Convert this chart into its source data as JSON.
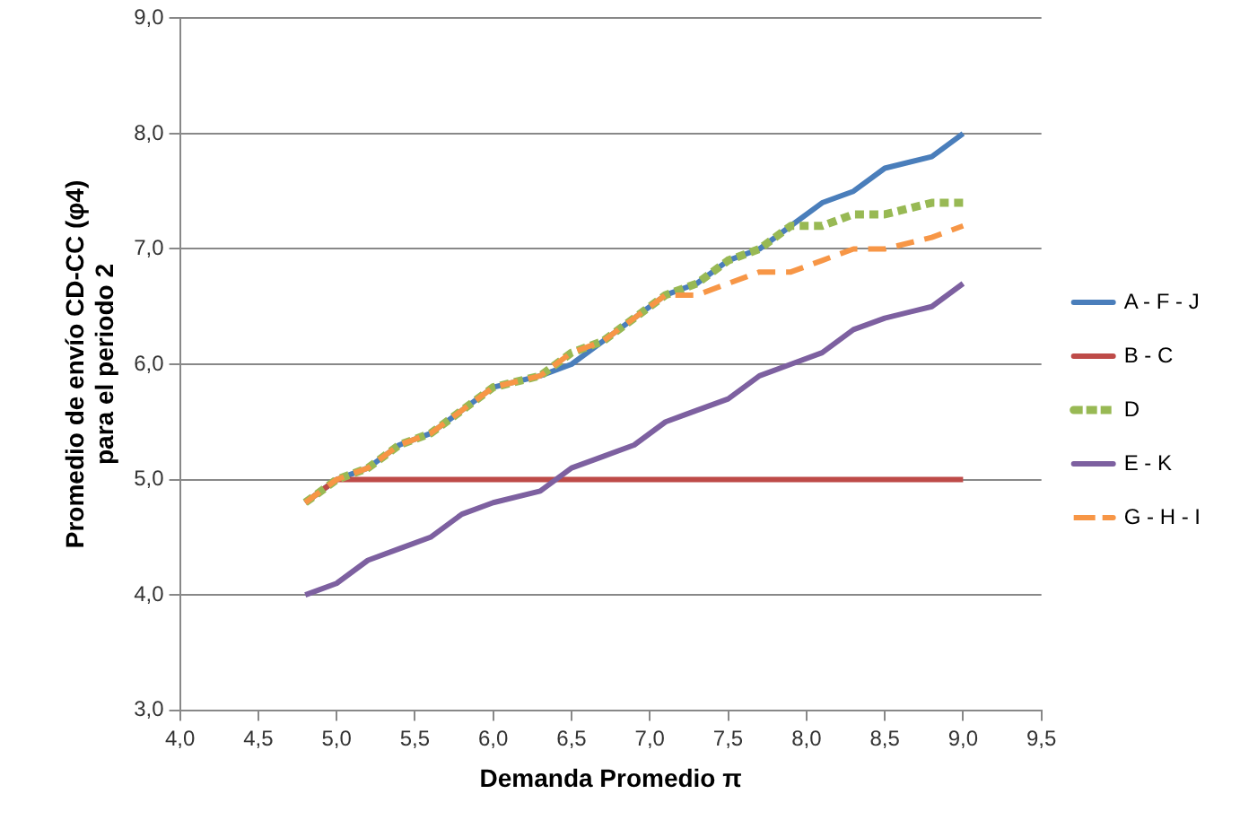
{
  "chart_data": {
    "type": "line",
    "xlabel": "Demanda Promedio π",
    "ylabel": "Promedio de envío CD-CC (φ4)\npara el periodo 2",
    "x": [
      4.8,
      5.0,
      5.2,
      5.4,
      5.6,
      5.8,
      6.0,
      6.3,
      6.5,
      6.7,
      6.9,
      7.1,
      7.3,
      7.5,
      7.7,
      7.9,
      8.1,
      8.3,
      8.5,
      8.8,
      9.0
    ],
    "series": [
      {
        "name": "A - F - J",
        "color": "#4a7ebb",
        "line_style": "solid",
        "values": [
          4.8,
          5.0,
          5.1,
          5.3,
          5.4,
          5.6,
          5.8,
          5.9,
          6.0,
          6.2,
          6.4,
          6.6,
          6.7,
          6.9,
          7.0,
          7.2,
          7.4,
          7.5,
          7.7,
          7.8,
          8.0
        ]
      },
      {
        "name": "B - C",
        "color": "#be4b48",
        "line_style": "solid",
        "values": [
          4.8,
          5.0,
          5.0,
          5.0,
          5.0,
          5.0,
          5.0,
          5.0,
          5.0,
          5.0,
          5.0,
          5.0,
          5.0,
          5.0,
          5.0,
          5.0,
          5.0,
          5.0,
          5.0,
          5.0,
          5.0
        ]
      },
      {
        "name": "D",
        "color": "#98b954",
        "line_style": "dotted",
        "values": [
          4.8,
          5.0,
          5.1,
          5.3,
          5.4,
          5.6,
          5.8,
          5.9,
          6.1,
          6.2,
          6.4,
          6.6,
          6.7,
          6.9,
          7.0,
          7.2,
          7.2,
          7.3,
          7.3,
          7.4,
          7.4
        ]
      },
      {
        "name": "E - K",
        "color": "#7d60a0",
        "line_style": "solid",
        "values": [
          4.0,
          4.1,
          4.3,
          4.4,
          4.5,
          4.7,
          4.8,
          4.9,
          5.1,
          5.2,
          5.3,
          5.5,
          5.6,
          5.7,
          5.9,
          6.0,
          6.1,
          6.3,
          6.4,
          6.5,
          6.7
        ]
      },
      {
        "name": "G - H - I",
        "color": "#f79646",
        "line_style": "dashed",
        "values": [
          4.8,
          5.0,
          5.1,
          5.3,
          5.4,
          5.6,
          5.8,
          5.9,
          6.1,
          6.2,
          6.4,
          6.6,
          6.6,
          6.7,
          6.8,
          6.8,
          6.9,
          7.0,
          7.0,
          7.1,
          7.2
        ]
      }
    ],
    "xlim": [
      4.0,
      9.5
    ],
    "xticks": [
      {
        "value": 4.0,
        "label": "4,0"
      },
      {
        "value": 4.5,
        "label": "4,5"
      },
      {
        "value": 5.0,
        "label": "5,0"
      },
      {
        "value": 5.5,
        "label": "5,5"
      },
      {
        "value": 6.0,
        "label": "6,0"
      },
      {
        "value": 6.5,
        "label": "6,5"
      },
      {
        "value": 7.0,
        "label": "7,0"
      },
      {
        "value": 7.5,
        "label": "7,5"
      },
      {
        "value": 8.0,
        "label": "8,0"
      },
      {
        "value": 8.5,
        "label": "8,5"
      },
      {
        "value": 9.0,
        "label": "9,0"
      },
      {
        "value": 9.5,
        "label": "9,5"
      }
    ],
    "ylim": [
      3.0,
      9.0
    ],
    "yticks": [
      {
        "value": 3.0,
        "label": "3,0"
      },
      {
        "value": 4.0,
        "label": "4,0"
      },
      {
        "value": 5.0,
        "label": "5,0"
      },
      {
        "value": 6.0,
        "label": "6,0"
      },
      {
        "value": 7.0,
        "label": "7,0"
      },
      {
        "value": 8.0,
        "label": "8,0"
      },
      {
        "value": 9.0,
        "label": "9,0"
      }
    ],
    "grid": "y",
    "legend": "right",
    "marker": "none"
  }
}
